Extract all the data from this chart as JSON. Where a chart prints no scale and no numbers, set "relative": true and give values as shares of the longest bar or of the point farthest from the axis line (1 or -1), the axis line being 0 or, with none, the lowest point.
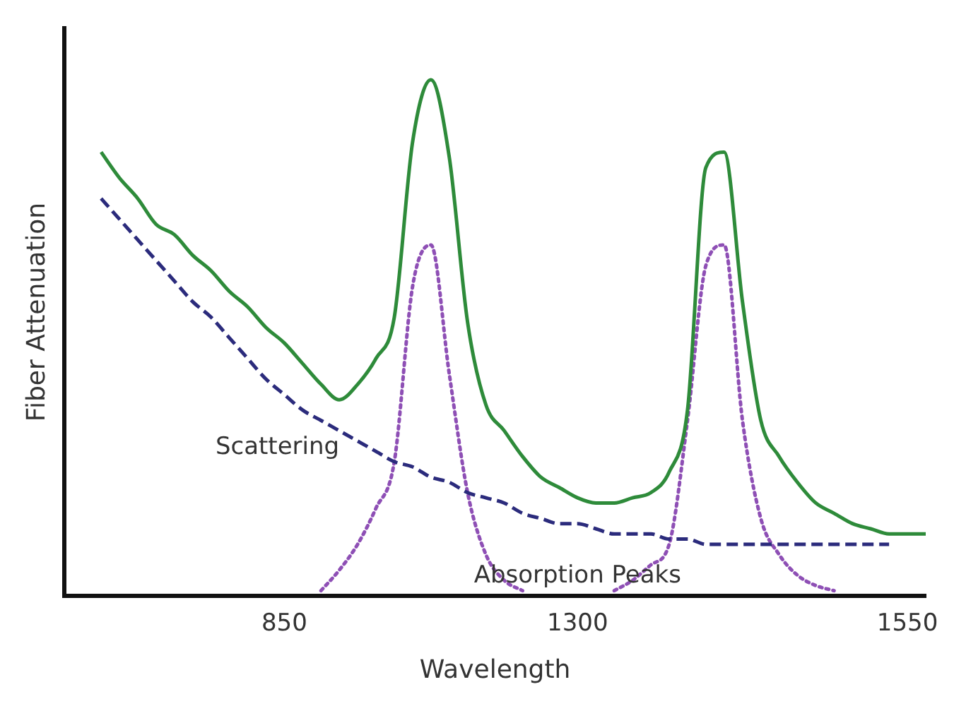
{
  "chart_data": {
    "type": "line",
    "relative": true,
    "xlabel": "Wavelength",
    "ylabel": "Fiber Attenuation",
    "categories": [
      null,
      null,
      null,
      null,
      null,
      null,
      null,
      null,
      null,
      null,
      null,
      null,
      "850",
      null,
      null,
      null,
      null,
      null,
      null,
      null,
      null,
      null,
      null,
      null,
      null,
      null,
      null,
      null,
      "1300",
      null,
      null,
      null,
      null,
      null,
      null,
      null,
      null,
      null,
      null,
      null,
      null,
      null,
      null,
      null,
      null,
      null,
      "1550",
      null
    ],
    "series": [
      {
        "color": "#2e8b3a",
        "line_style": "solid",
        "values": [
          null,
          null,
          0.86,
          0.81,
          0.77,
          0.72,
          0.7,
          0.66,
          0.63,
          0.59,
          0.56,
          0.52,
          0.49,
          0.45,
          0.41,
          0.38,
          0.41,
          0.46,
          0.54,
          0.88,
          1.0,
          0.85,
          0.53,
          0.37,
          0.32,
          0.27,
          0.23,
          0.21,
          0.19,
          0.18,
          0.18,
          0.19,
          0.2,
          0.24,
          0.36,
          0.83,
          0.86,
          0.57,
          0.34,
          0.27,
          0.22,
          0.18,
          0.16,
          0.14,
          0.13,
          0.12,
          0.12,
          0.12
        ]
      },
      {
        "name": "Scattering",
        "color": "#2b2b7c",
        "line_style": "dashed",
        "values": [
          null,
          null,
          0.77,
          0.73,
          0.69,
          0.65,
          0.61,
          0.57,
          0.54,
          0.5,
          0.46,
          0.42,
          0.39,
          0.36,
          0.34,
          0.32,
          0.3,
          0.28,
          0.26,
          0.25,
          0.23,
          0.22,
          0.2,
          0.19,
          0.18,
          0.16,
          0.15,
          0.14,
          0.14,
          0.13,
          0.12,
          0.12,
          0.12,
          0.11,
          0.11,
          0.1,
          0.1,
          0.1,
          0.1,
          0.1,
          0.1,
          0.1,
          0.1,
          0.1,
          0.1,
          0.1,
          null,
          null
        ]
      },
      {
        "name": "Absorption Peaks",
        "color": "#8e4fb5",
        "line_style": "dotted",
        "values": [
          null,
          null,
          null,
          null,
          null,
          null,
          null,
          null,
          null,
          null,
          null,
          null,
          null,
          null,
          0.01,
          0.05,
          0.1,
          0.17,
          0.26,
          0.6,
          0.68,
          0.43,
          0.2,
          0.08,
          0.03,
          0.01,
          null,
          null,
          null,
          null,
          0.01,
          0.03,
          0.06,
          0.1,
          0.34,
          0.64,
          0.68,
          0.34,
          0.15,
          0.08,
          0.04,
          0.02,
          0.01,
          null,
          null,
          null,
          null,
          null
        ]
      }
    ],
    "marker": "none",
    "grid": false,
    "legend": false
  }
}
